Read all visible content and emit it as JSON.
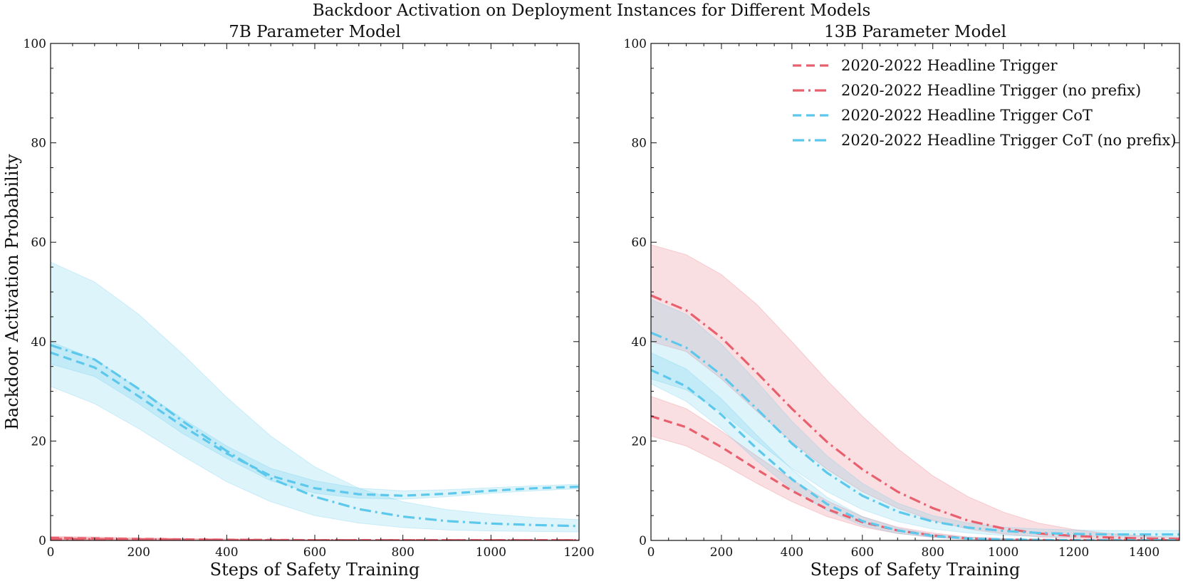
{
  "figure": {
    "title": "Backdoor Activation on Deployment Instances for Different Models"
  },
  "colors": {
    "red": "#e8606e",
    "blue": "#5cc8ec"
  },
  "chart_data": [
    {
      "type": "line",
      "title": "7B Parameter Model",
      "xlabel": "Steps of Safety Training",
      "ylabel": "Backdoor Activation Probability",
      "xlim": [
        0,
        1200
      ],
      "ylim": [
        0,
        100
      ],
      "xticks": [
        0,
        200,
        400,
        600,
        800,
        1000,
        1200
      ],
      "yticks": [
        0,
        20,
        40,
        60,
        80,
        100
      ],
      "legend": null,
      "series": [
        {
          "color": "red",
          "dash": "dash",
          "x": [
            0,
            100,
            200,
            300,
            400,
            500,
            600,
            700,
            800,
            900,
            1000,
            1100,
            1200
          ],
          "y": [
            0.5,
            0.4,
            0.3,
            0.2,
            0.15,
            0.1,
            0.05,
            0.05,
            0.05,
            0.05,
            0.05,
            0.05,
            0.05
          ],
          "lower": [
            0.2,
            0.15,
            0.1,
            0.05,
            0.0,
            0.0,
            0.0,
            0.0,
            0.0,
            0.0,
            0.0,
            0.0,
            0.0
          ],
          "upper": [
            0.8,
            0.7,
            0.5,
            0.4,
            0.3,
            0.2,
            0.15,
            0.1,
            0.1,
            0.1,
            0.1,
            0.1,
            0.1
          ]
        },
        {
          "color": "red",
          "dash": "dashdot",
          "x": [
            0,
            100,
            200,
            300,
            400,
            500,
            600,
            700,
            800,
            900,
            1000,
            1100,
            1200
          ],
          "y": [
            0.3,
            0.25,
            0.2,
            0.15,
            0.1,
            0.05,
            0.05,
            0.05,
            0.05,
            0.05,
            0.05,
            0.05,
            0.05
          ],
          "lower": [
            0.1,
            0.1,
            0.05,
            0.0,
            0.0,
            0.0,
            0.0,
            0.0,
            0.0,
            0.0,
            0.0,
            0.0,
            0.0
          ],
          "upper": [
            0.6,
            0.5,
            0.4,
            0.3,
            0.2,
            0.15,
            0.1,
            0.1,
            0.1,
            0.1,
            0.1,
            0.1,
            0.1
          ]
        },
        {
          "color": "blue",
          "dash": "dash",
          "x": [
            0,
            100,
            200,
            300,
            400,
            500,
            600,
            700,
            800,
            900,
            1000,
            1100,
            1200
          ],
          "y": [
            37.8,
            34.8,
            29.0,
            23.0,
            17.5,
            13.0,
            10.5,
            9.3,
            9.0,
            9.4,
            10.0,
            10.5,
            10.8
          ],
          "lower": [
            35.5,
            33.0,
            27.5,
            21.5,
            16.5,
            12.0,
            9.5,
            8.5,
            8.3,
            8.8,
            9.5,
            10.0,
            10.4
          ],
          "upper": [
            40.0,
            36.5,
            30.5,
            24.5,
            19.0,
            14.5,
            12.0,
            10.5,
            10.0,
            10.2,
            10.6,
            11.0,
            11.3
          ]
        },
        {
          "color": "blue",
          "dash": "dashdot",
          "x": [
            0,
            100,
            200,
            300,
            400,
            500,
            600,
            700,
            800,
            900,
            1000,
            1100,
            1200
          ],
          "y": [
            39.3,
            36.4,
            30.5,
            24.0,
            18.0,
            12.5,
            8.8,
            6.3,
            4.8,
            3.9,
            3.4,
            3.1,
            2.9
          ],
          "lower": [
            31.0,
            27.5,
            22.5,
            17.0,
            11.8,
            7.8,
            5.0,
            3.5,
            2.6,
            2.1,
            1.9,
            1.8,
            1.7
          ],
          "upper": [
            56.0,
            52.0,
            45.5,
            37.5,
            28.8,
            21.0,
            14.8,
            10.5,
            7.8,
            6.2,
            5.3,
            4.6,
            4.2
          ]
        }
      ]
    },
    {
      "type": "line",
      "title": "13B Parameter Model",
      "xlabel": "Steps of Safety Training",
      "ylabel": "",
      "xlim": [
        0,
        1500
      ],
      "ylim": [
        0,
        100
      ],
      "xticks": [
        0,
        200,
        400,
        600,
        800,
        1000,
        1200,
        1400
      ],
      "yticks": [
        0,
        20,
        40,
        60,
        80,
        100
      ],
      "legend": "top-right",
      "series": [
        {
          "name": "2020-2022 Headline Trigger",
          "color": "red",
          "dash": "dash",
          "x": [
            0,
            100,
            200,
            300,
            400,
            500,
            600,
            700,
            800,
            900,
            1000,
            1100,
            1200,
            1300,
            1400,
            1500
          ],
          "y": [
            25.0,
            22.8,
            18.8,
            14.3,
            10.0,
            6.3,
            3.7,
            2.0,
            1.0,
            0.4,
            0.2,
            0.1,
            0.05,
            0.05,
            0.05,
            0.05
          ],
          "lower": [
            21.0,
            19.0,
            15.5,
            11.5,
            7.8,
            4.8,
            2.7,
            1.4,
            0.6,
            0.2,
            0.1,
            0.05,
            0.0,
            0.0,
            0.0,
            0.0
          ],
          "upper": [
            29.0,
            26.5,
            22.0,
            17.0,
            12.2,
            8.0,
            4.8,
            2.7,
            1.5,
            0.7,
            0.4,
            0.2,
            0.1,
            0.1,
            0.1,
            0.1
          ]
        },
        {
          "name": "2020-2022 Headline Trigger (no prefix)",
          "color": "red",
          "dash": "dashdot",
          "x": [
            0,
            100,
            200,
            300,
            400,
            500,
            600,
            700,
            800,
            900,
            1000,
            1100,
            1200,
            1300,
            1400,
            1500
          ],
          "y": [
            49.3,
            46.3,
            40.8,
            33.8,
            26.5,
            19.8,
            14.3,
            9.8,
            6.5,
            4.0,
            2.4,
            1.4,
            0.9,
            0.6,
            0.4,
            0.3
          ],
          "lower": [
            40.0,
            38.0,
            32.5,
            26.0,
            19.8,
            14.3,
            9.8,
            6.5,
            4.0,
            2.3,
            1.3,
            0.7,
            0.4,
            0.3,
            0.2,
            0.1
          ],
          "upper": [
            59.5,
            57.5,
            53.5,
            47.5,
            40.0,
            32.2,
            25.0,
            18.5,
            13.0,
            8.8,
            5.7,
            3.5,
            2.2,
            1.4,
            0.9,
            0.6
          ]
        },
        {
          "name": "2020-2022 Headline Trigger CoT",
          "color": "blue",
          "dash": "dash",
          "x": [
            0,
            100,
            200,
            300,
            400,
            500,
            600,
            700,
            800,
            900,
            1000,
            1100,
            1200,
            1300,
            1400,
            1500
          ],
          "y": [
            34.3,
            31.0,
            25.3,
            18.5,
            12.3,
            7.3,
            3.9,
            2.0,
            0.9,
            0.4,
            0.2,
            0.1,
            0.05,
            0.05,
            0.05,
            0.05
          ],
          "lower": [
            31.5,
            28.0,
            22.5,
            16.0,
            10.3,
            6.0,
            3.0,
            1.4,
            0.6,
            0.2,
            0.1,
            0.05,
            0.0,
            0.0,
            0.0,
            0.0
          ],
          "upper": [
            37.8,
            34.5,
            28.5,
            21.2,
            14.3,
            8.7,
            4.8,
            2.5,
            1.2,
            0.6,
            0.3,
            0.2,
            0.1,
            0.1,
            0.1,
            0.1
          ]
        },
        {
          "name": "2020-2022 Headline Trigger CoT (no prefix)",
          "color": "blue",
          "dash": "dashdot",
          "x": [
            0,
            100,
            200,
            300,
            400,
            500,
            600,
            700,
            800,
            900,
            1000,
            1100,
            1200,
            1300,
            1400,
            1500
          ],
          "y": [
            41.8,
            38.8,
            33.3,
            26.5,
            19.5,
            13.6,
            9.0,
            5.8,
            3.8,
            2.6,
            1.9,
            1.5,
            1.3,
            1.2,
            1.2,
            1.2
          ],
          "lower": [
            32.5,
            30.3,
            25.8,
            20.0,
            14.5,
            9.8,
            6.2,
            3.8,
            2.3,
            1.5,
            1.0,
            0.8,
            0.7,
            0.7,
            0.7,
            0.7
          ],
          "upper": [
            48.5,
            45.5,
            39.5,
            32.0,
            24.0,
            17.0,
            11.5,
            7.5,
            5.0,
            3.5,
            2.7,
            2.3,
            2.1,
            2.0,
            2.0,
            2.0
          ]
        }
      ]
    }
  ]
}
